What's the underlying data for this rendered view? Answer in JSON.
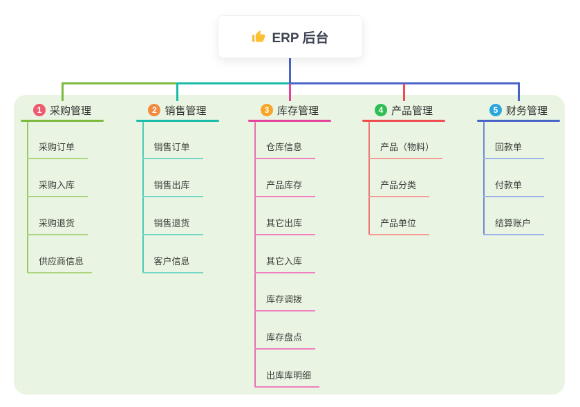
{
  "root": {
    "title": "ERP 后台",
    "icon": "thumbs-up-icon"
  },
  "panel": {
    "background": "#E9F5E2"
  },
  "connector": {
    "color": "#4A63C8"
  },
  "branches": [
    {
      "badge": "1",
      "label": "采购管理",
      "badge_color": "#EE5A6F",
      "line_color": "#7CB93E",
      "child_line_color": "#ABD47D",
      "children": [
        "采购订单",
        "采购入库",
        "采购退货",
        "供应商信息"
      ]
    },
    {
      "badge": "2",
      "label": "销售管理",
      "badge_color": "#F28A3F",
      "line_color": "#18BCA8",
      "child_line_color": "#74D6C6",
      "children": [
        "销售订单",
        "销售出库",
        "销售退货",
        "客户信息"
      ]
    },
    {
      "badge": "3",
      "label": "库存管理",
      "badge_color": "#F7A62A",
      "line_color": "#E4439B",
      "child_line_color": "#F07EC0",
      "children": [
        "仓库信息",
        "产品库存",
        "其它出库",
        "其它入库",
        "库存调拨",
        "库存盘点",
        "出库库明细"
      ]
    },
    {
      "badge": "4",
      "label": "产品管理",
      "badge_color": "#2FBE54",
      "line_color": "#F04B51",
      "child_line_color": "#F59B98",
      "children": [
        "产品（物料）",
        "产品分类",
        "产品单位"
      ]
    },
    {
      "badge": "5",
      "label": "财务管理",
      "badge_color": "#2BA6DD",
      "line_color": "#4A63C8",
      "child_line_color": "#9DB4E8",
      "children": [
        "回款单",
        "付款单",
        "结算账户"
      ]
    }
  ]
}
